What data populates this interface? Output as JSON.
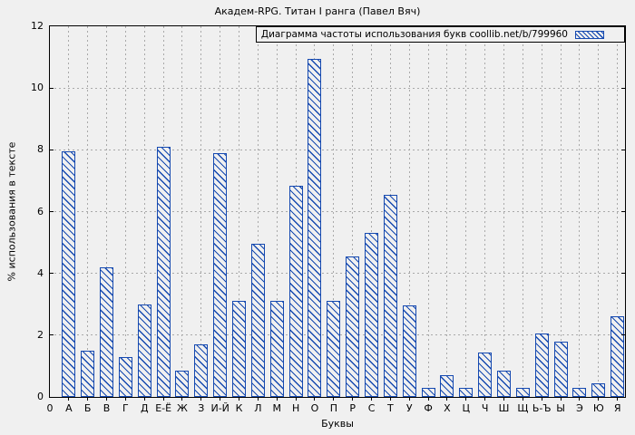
{
  "colors": {
    "bar": "#1549b0",
    "background": "#f0f0f0",
    "grid": "#a9a9a9",
    "axis": "#000000"
  },
  "chart_data": {
    "type": "bar",
    "title": "Академ-RPG. Титан I ранга (Павел Вяч)",
    "legend": {
      "label": "Диаграмма частоты использования букв coollib.net/b/799960",
      "position": "top-right-inside"
    },
    "xlabel": "Буквы",
    "ylabel": "% использования в тексте",
    "x_origin_label": "0",
    "ylim": [
      0,
      12
    ],
    "yticks": [
      0,
      2,
      4,
      6,
      8,
      10,
      12
    ],
    "grid": true,
    "bar_style": "hatched-diagonal",
    "categories": [
      "А",
      "Б",
      "В",
      "Г",
      "Д",
      "Е-Ё",
      "Ж",
      "З",
      "И-Й",
      "К",
      "Л",
      "М",
      "Н",
      "О",
      "П",
      "Р",
      "С",
      "Т",
      "У",
      "Ф",
      "Х",
      "Ц",
      "Ч",
      "Ш",
      "Щ",
      "Ь-Ъ",
      "Ы",
      "Э",
      "Ю",
      "Я"
    ],
    "values": [
      7.95,
      1.5,
      4.2,
      1.3,
      3.0,
      8.1,
      0.85,
      1.7,
      7.9,
      3.1,
      4.95,
      3.1,
      6.85,
      10.95,
      3.1,
      4.55,
      5.3,
      6.55,
      2.95,
      0.3,
      0.7,
      0.3,
      1.45,
      0.85,
      0.3,
      2.05,
      1.8,
      0.3,
      0.45,
      2.6
    ]
  }
}
